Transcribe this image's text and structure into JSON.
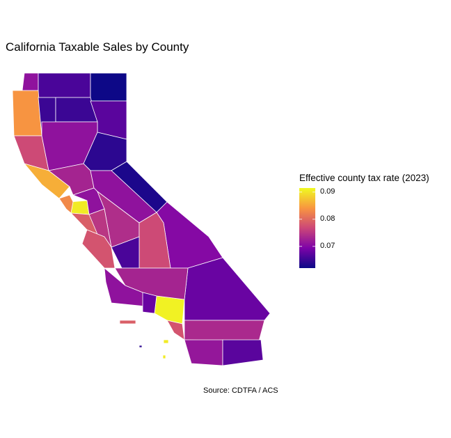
{
  "title": "California Taxable Sales by County",
  "caption": "Source: CDTFA / ACS",
  "legend": {
    "title": "Effective county tax rate (2023)",
    "ticks": [
      "0.09",
      "0.08",
      "0.07"
    ],
    "tick_values": [
      0.09,
      0.08,
      0.07
    ],
    "range": [
      0.062,
      0.0915
    ],
    "palette": "plasma",
    "palette_colors": [
      "#0d0887",
      "#7e03a8",
      "#cc4778",
      "#f89540",
      "#f0f921"
    ],
    "placement": "right"
  },
  "map": {
    "border_color": "#ffffff",
    "region_values": [
      0.071,
      0.066,
      0.062,
      0.084,
      0.065,
      0.065,
      0.067,
      0.077,
      0.071,
      0.086,
      0.064,
      0.073,
      0.0905,
      0.083,
      0.063,
      0.071,
      0.071,
      0.074,
      0.079,
      0.075,
      0.07,
      0.077,
      0.078,
      0.066,
      0.091,
      0.068,
      0.073,
      0.071,
      0.068,
      0.078
    ]
  }
}
